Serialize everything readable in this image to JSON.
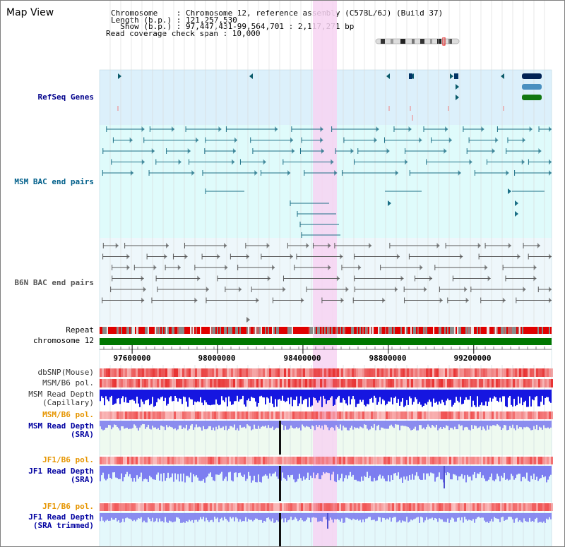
{
  "page": {
    "title": "Map View"
  },
  "header": {
    "lines": [
      "Chromosome    : Chromosome 12, reference assembly (C57BL/6J) (Build 37)",
      "Length (b.p.) : 121,257,530",
      "  Show (b.p.) : 97,447,431-99,564,701 : 2,117,271 bp",
      "Read coverage check span : 10,000"
    ]
  },
  "tracks": {
    "refseq": {
      "label": "RefSeq Genes",
      "color": "#00008b"
    },
    "msm_bac": {
      "label": "MSM BAC end pairs",
      "color": "#005f8a"
    },
    "b6n_bac": {
      "label": "B6N BAC end pairs",
      "color": "#555555"
    },
    "repeat": {
      "label": "Repeat"
    },
    "chromosome": {
      "label": "chromosome 12"
    },
    "dbsnp": {
      "label": "dbSNP(Mouse)"
    },
    "msm_b6_pol_1": {
      "label": "MSM/B6 pol."
    },
    "msm_depth_cap": {
      "label": "MSM Read Depth",
      "sub": "(Capillary)"
    },
    "msm_b6_pol_2": {
      "label": "MSM/B6 pol."
    },
    "msm_depth_sra": {
      "label": "MSM Read Depth",
      "sub": "(SRA)"
    },
    "jf1_b6_pol_1": {
      "label": "JF1/B6 pol."
    },
    "jf1_depth_sra": {
      "label": "JF1 Read Depth",
      "sub": "(SRA)"
    },
    "jf1_b6_pol_2": {
      "label": "JF1/B6 pol."
    },
    "jf1_depth_trim": {
      "label": "JF1 Read Depth",
      "sub": "(SRA trimmed)"
    }
  },
  "axis": {
    "coordinates": [
      {
        "label": "97600000",
        "value": 97600000
      },
      {
        "label": "98000000",
        "value": 98000000
      },
      {
        "label": "98400000",
        "value": 98400000
      },
      {
        "label": "98800000",
        "value": 98800000
      },
      {
        "label": "99200000",
        "value": 99200000
      }
    ],
    "range": [
      97447431,
      99564701
    ]
  },
  "colors": {
    "highlight": "#f7d4f2",
    "refseq_bg": "#dcf0fb",
    "bac_bg": "#dffbfb",
    "b6n_bg": "#eef7fb",
    "chromosome_bar": "#007700",
    "repeat_red": "#e00000",
    "depth_blue": "#1a1ae6",
    "depth_light": "#8080f0",
    "pol_red": "#ee4444",
    "orange_label": "#e69500",
    "blue_label": "#0000a0"
  }
}
